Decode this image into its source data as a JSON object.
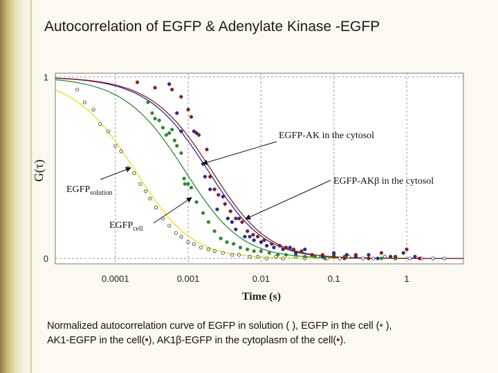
{
  "slide": {
    "title": "Autocorrelation of EGFP & Adenylate Kinase -EGFP"
  },
  "chart_data": {
    "type": "scatter",
    "title": "Autocorrelation of EGFP & Adenylate Kinase -EGFP",
    "xlabel": "Time (s)",
    "ylabel": "G(τ)",
    "xscale": "log",
    "xlim": [
      1.5e-05,
      6
    ],
    "ylim": [
      -0.03,
      1.02
    ],
    "x_ticks": [
      {
        "value": 0.0001,
        "label": "0.0001"
      },
      {
        "value": 0.001,
        "label": "0.001"
      },
      {
        "value": 0.01,
        "label": "0.01"
      },
      {
        "value": 0.1,
        "label": "0.1"
      },
      {
        "value": 1,
        "label": "1"
      }
    ],
    "y_ticks": [
      {
        "value": 0,
        "label": "0"
      },
      {
        "value": 1,
        "label": "1"
      }
    ],
    "grid": true,
    "series": [
      {
        "color": "#f0e000",
        "line_tau": 0.00025,
        "points": [
          [
            3e-05,
            0.93
          ],
          [
            3.8e-05,
            0.86
          ],
          [
            5e-05,
            0.82
          ],
          [
            6.2e-05,
            0.74
          ],
          [
            8e-05,
            0.7
          ],
          [
            0.0001,
            0.62
          ],
          [
            0.00012,
            0.59
          ],
          [
            0.00015,
            0.5
          ],
          [
            0.00018,
            0.47
          ],
          [
            0.00022,
            0.41
          ],
          [
            0.00026,
            0.37
          ],
          [
            0.0003,
            0.33
          ],
          [
            0.00036,
            0.28
          ],
          [
            0.00045,
            0.22
          ],
          [
            0.00055,
            0.18
          ],
          [
            0.00068,
            0.14
          ],
          [
            0.0008,
            0.12
          ],
          [
            0.001,
            0.09
          ],
          [
            0.0012,
            0.08
          ],
          [
            0.0015,
            0.06
          ],
          [
            0.0019,
            0.05
          ],
          [
            0.0023,
            0.04
          ],
          [
            0.003,
            0.03
          ],
          [
            0.004,
            0.02
          ],
          [
            0.005,
            0.02
          ],
          [
            0.007,
            0.01
          ],
          [
            0.009,
            0.01
          ],
          [
            0.012,
            0.0
          ],
          [
            0.016,
            0.01
          ],
          [
            0.02,
            0.0
          ],
          [
            0.03,
            0.01
          ],
          [
            0.04,
            0.0
          ],
          [
            0.06,
            0.01
          ],
          [
            0.08,
            0.0
          ],
          [
            0.12,
            0.0
          ],
          [
            0.16,
            0.01
          ],
          [
            0.25,
            0.0
          ],
          [
            0.35,
            0.0
          ],
          [
            0.5,
            0.01
          ],
          [
            0.7,
            0.0
          ],
          [
            1.1,
            0.0
          ],
          [
            1.6,
            0.0
          ],
          [
            2.3,
            0.0
          ],
          [
            3.3,
            0.0
          ]
        ]
      },
      {
        "color": "#2e8b2e",
        "line_tau": 0.0012,
        "points": [
          [
            0.00028,
            0.86
          ],
          [
            0.00032,
            0.8
          ],
          [
            0.00035,
            0.77
          ],
          [
            0.0004,
            0.76
          ],
          [
            0.00045,
            0.72
          ],
          [
            0.0005,
            0.68
          ],
          [
            0.00055,
            0.69
          ],
          [
            0.0006,
            0.71
          ],
          [
            0.00065,
            0.65
          ],
          [
            0.0007,
            0.62
          ],
          [
            0.0008,
            0.58
          ],
          [
            0.00088,
            0.44
          ],
          [
            0.0009,
            0.41
          ],
          [
            0.001,
            0.41
          ],
          [
            0.0011,
            0.39
          ],
          [
            0.0013,
            0.31
          ],
          [
            0.0016,
            0.25
          ],
          [
            0.0019,
            0.2
          ],
          [
            0.0023,
            0.15
          ],
          [
            0.0028,
            0.11
          ],
          [
            0.0034,
            0.09
          ],
          [
            0.0042,
            0.08
          ],
          [
            0.0052,
            0.06
          ],
          [
            0.0065,
            0.05
          ],
          [
            0.008,
            0.04
          ],
          [
            0.01,
            0.04
          ],
          [
            0.013,
            0.03
          ],
          [
            0.017,
            0.02
          ],
          [
            0.022,
            0.02
          ],
          [
            0.03,
            0.02
          ],
          [
            0.04,
            0.01
          ],
          [
            0.055,
            0.01
          ],
          [
            0.075,
            0.0
          ],
          [
            0.1,
            0.02
          ],
          [
            0.14,
            0.01
          ],
          [
            0.2,
            0.01
          ],
          [
            0.3,
            0.0
          ],
          [
            0.45,
            0.0
          ],
          [
            0.7,
            0.0
          ]
        ]
      },
      {
        "color": "#2a2a9c",
        "line_tau": 0.0025,
        "points": [
          [
            0.00055,
            0.96
          ],
          [
            0.0007,
            0.8
          ],
          [
            0.0008,
            0.7
          ],
          [
            0.0012,
            0.7
          ],
          [
            0.0013,
            0.69
          ],
          [
            0.0016,
            0.52
          ],
          [
            0.0017,
            0.45
          ],
          [
            0.002,
            0.38
          ],
          [
            0.0025,
            0.27
          ],
          [
            0.003,
            0.34
          ],
          [
            0.0035,
            0.22
          ],
          [
            0.004,
            0.2
          ],
          [
            0.0045,
            0.16
          ],
          [
            0.005,
            0.22
          ],
          [
            0.006,
            0.12
          ],
          [
            0.007,
            0.12
          ],
          [
            0.008,
            0.1
          ],
          [
            0.01,
            0.09
          ],
          [
            0.012,
            0.07
          ],
          [
            0.015,
            0.06
          ],
          [
            0.02,
            0.05
          ],
          [
            0.025,
            0.06
          ],
          [
            0.03,
            0.03
          ],
          [
            0.04,
            0.05
          ],
          [
            0.05,
            0.02
          ],
          [
            0.07,
            0.01
          ],
          [
            0.1,
            0.03
          ],
          [
            0.15,
            0.02
          ],
          [
            0.2,
            0.01
          ],
          [
            0.3,
            0.02
          ],
          [
            0.4,
            0.0
          ],
          [
            0.6,
            0.01
          ],
          [
            0.9,
            0.03
          ],
          [
            1.3,
            0.01
          ]
        ]
      },
      {
        "color": "#8b1e1e",
        "line_tau": 0.0028,
        "points": [
          [
            0.0002,
            0.97
          ],
          [
            0.00035,
            0.94
          ],
          [
            0.0006,
            0.93
          ],
          [
            0.0008,
            0.89
          ],
          [
            0.001,
            0.82
          ],
          [
            0.0011,
            0.78
          ],
          [
            0.0014,
            0.68
          ],
          [
            0.0018,
            0.6
          ],
          [
            0.002,
            0.45
          ],
          [
            0.0023,
            0.38
          ],
          [
            0.0026,
            0.35
          ],
          [
            0.0032,
            0.3
          ],
          [
            0.0038,
            0.26
          ],
          [
            0.0045,
            0.22
          ],
          [
            0.0055,
            0.2
          ],
          [
            0.0065,
            0.15
          ],
          [
            0.0078,
            0.13
          ],
          [
            0.009,
            0.12
          ],
          [
            0.011,
            0.1
          ],
          [
            0.014,
            0.08
          ],
          [
            0.018,
            0.07
          ],
          [
            0.022,
            0.06
          ],
          [
            0.028,
            0.05
          ],
          [
            0.036,
            0.04
          ],
          [
            0.05,
            0.02
          ],
          [
            0.07,
            0.02
          ],
          [
            0.1,
            0.01
          ],
          [
            0.14,
            0.0
          ],
          [
            0.2,
            0.02
          ],
          [
            0.3,
            0.0
          ],
          [
            0.45,
            0.03
          ],
          [
            0.7,
            0.01
          ],
          [
            1.0,
            0.05
          ],
          [
            1.5,
            0.0
          ]
        ]
      }
    ],
    "annotations": [
      {
        "text": "EGFP-AK in the cytosol"
      },
      {
        "text_main": "EGFP-AK",
        "text_sym": "β",
        "text_rest": " in the cytosol"
      },
      {
        "text_main": "EGFP",
        "text_sub": "solution"
      },
      {
        "text_main": "EGFP",
        "text_sub": "cell"
      }
    ]
  },
  "caption": {
    "line1_part1": "Normalized autocorrelation curve of EGFP in solution ( ), EGFP in the cell (",
    "line1_dot": "•",
    "line1_part2": " ),",
    "line2_part1": "AK1-EGFP in the cell(",
    "line2_dot1": "•",
    "line2_part2": "), AK1β-EGFP in the cytoplasm of the cell(",
    "line2_dot2": "•",
    "line2_part3": ")."
  }
}
